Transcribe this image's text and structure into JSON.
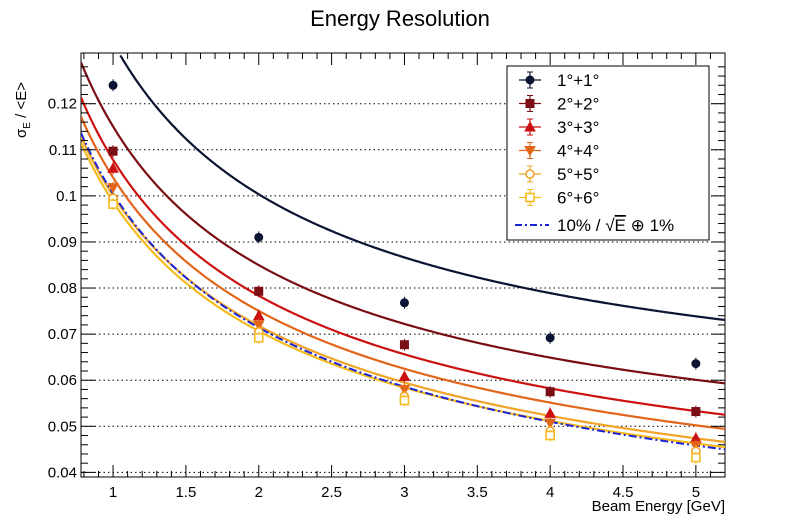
{
  "chart_data": {
    "type": "scatter",
    "title": "Energy Resolution",
    "xlabel": "Beam Energy [GeV]",
    "ylabel_main": "σ",
    "ylabel_sub": "E",
    "ylabel_rest": " / <E>",
    "xlim": [
      0.78,
      5.2
    ],
    "ylim": [
      0.039,
      0.131
    ],
    "x_ticks": [
      1,
      1.5,
      2,
      2.5,
      3,
      3.5,
      4,
      4.5,
      5
    ],
    "x_tick_labels": [
      "1",
      "1.5",
      "2",
      "2.5",
      "3",
      "3.5",
      "4",
      "4.5",
      "5"
    ],
    "y_ticks": [
      0.04,
      0.05,
      0.06,
      0.07,
      0.08,
      0.09,
      0.1,
      0.11,
      0.12
    ],
    "y_tick_labels": [
      "0.04",
      "0.05",
      "0.06",
      "0.07",
      "0.08",
      "0.09",
      "0.1",
      "0.11",
      "0.12"
    ],
    "grid": "horizontal dotted",
    "legend_position": "top-right",
    "series": [
      {
        "name": "1°+1°",
        "color": "#0b1433",
        "marker": "circle",
        "filled": true,
        "x": [
          1,
          2,
          3,
          4,
          5
        ],
        "y": [
          0.124,
          0.091,
          0.0768,
          0.0692,
          0.0636
        ],
        "fit": {
          "a": 0.124,
          "c": 0.0488
        }
      },
      {
        "name": "2°+2°",
        "color": "#7a0e14",
        "marker": "square",
        "filled": true,
        "x": [
          1,
          2,
          3,
          4,
          5
        ],
        "y": [
          0.1097,
          0.0793,
          0.0677,
          0.0575,
          0.0532
        ],
        "fit": {
          "a": 0.1097,
          "c": 0.0347
        }
      },
      {
        "name": "3°+3°",
        "color": "#cc1111",
        "marker": "triangle-up",
        "filled": true,
        "x": [
          1,
          2,
          3,
          4,
          5
        ],
        "y": [
          0.106,
          0.074,
          0.0608,
          0.0528,
          0.0474
        ],
        "fit": {
          "a": 0.1048,
          "c": 0.0254
        }
      },
      {
        "name": "4°+4°",
        "color": "#e2651a",
        "marker": "triangle-down",
        "filled": true,
        "x": [
          1,
          2,
          3,
          4,
          5
        ],
        "y": [
          0.1018,
          0.072,
          0.058,
          0.0507,
          0.0458
        ],
        "fit": {
          "a": 0.1018,
          "c": 0.0212
        }
      },
      {
        "name": "5°+5°",
        "color": "#f0a428",
        "marker": "circle",
        "filled": false,
        "x": [
          1,
          2,
          3,
          4,
          5
        ],
        "y": [
          0.0995,
          0.0705,
          0.0565,
          0.049,
          0.0446
        ],
        "fit": {
          "a": 0.0985,
          "c": 0.0175
        }
      },
      {
        "name": "6°+6°",
        "color": "#f5bb1e",
        "marker": "square",
        "filled": false,
        "x": [
          1,
          2,
          3,
          4,
          5
        ],
        "y": [
          0.0982,
          0.0692,
          0.0556,
          0.048,
          0.0432
        ],
        "fit": {
          "a": 0.0975,
          "c": 0.0155
        }
      }
    ],
    "reference_curve": {
      "label_pre": "10% / ",
      "label_root": "E",
      "label_post": " ⊕ 1%",
      "color": "#1a24d6",
      "a": 0.1,
      "c": 0.01
    }
  }
}
